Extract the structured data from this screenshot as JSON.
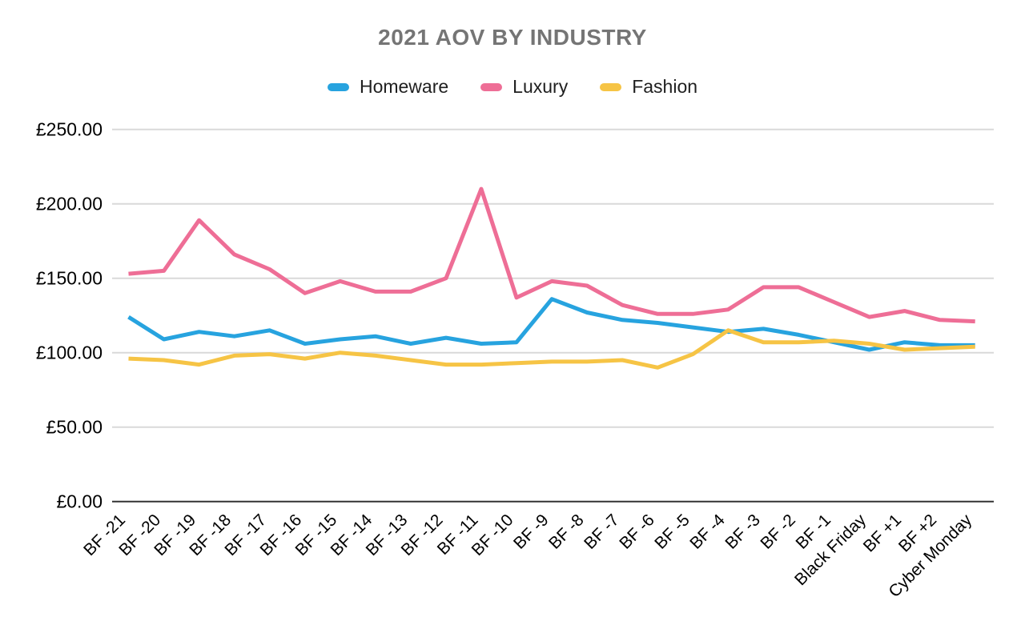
{
  "chart_data": {
    "type": "line",
    "title": "2021 AOV BY INDUSTRY",
    "title_color": "#757575",
    "legend_position": "top",
    "grid": true,
    "currency": "£",
    "ylim": [
      0,
      250
    ],
    "axis_color": "#333333",
    "gridline_color": "#d9d9d9",
    "label_color": "#000000",
    "y_ticks": [
      {
        "value": 0,
        "label": "£0.00"
      },
      {
        "value": 50,
        "label": "£50.00"
      },
      {
        "value": 100,
        "label": "£100.00"
      },
      {
        "value": 150,
        "label": "£150.00"
      },
      {
        "value": 200,
        "label": "£200.00"
      },
      {
        "value": 250,
        "label": "£250.00"
      }
    ],
    "categories": [
      "BF -21",
      "BF -20",
      "BF -19",
      "BF -18",
      "BF -17",
      "BF -16",
      "BF -15",
      "BF -14",
      "BF -13",
      "BF -12",
      "BF -11",
      "BF -10",
      "BF -9",
      "BF -8",
      "BF -7",
      "BF -6",
      "BF -5",
      "BF -4",
      "BF -3",
      "BF -2",
      "BF -1",
      "Black Friday",
      "BF +1",
      "BF +2",
      "Cyber Monday"
    ],
    "series": [
      {
        "name": "Homeware",
        "color": "#27A3DF",
        "values": [
          124,
          109,
          114,
          111,
          115,
          106,
          109,
          111,
          106,
          110,
          106,
          107,
          136,
          127,
          122,
          120,
          117,
          114,
          116,
          112,
          107,
          102,
          107,
          105,
          105
        ]
      },
      {
        "name": "Luxury",
        "color": "#EE6E96",
        "values": [
          153,
          155,
          189,
          166,
          156,
          140,
          148,
          141,
          141,
          150,
          210,
          137,
          148,
          145,
          132,
          126,
          126,
          129,
          144,
          144,
          134,
          124,
          128,
          122,
          121
        ]
      },
      {
        "name": "Fashion",
        "color": "#F6C445",
        "values": [
          96,
          95,
          92,
          98,
          99,
          96,
          100,
          98,
          95,
          92,
          92,
          93,
          94,
          94,
          95,
          90,
          99,
          115,
          107,
          107,
          108,
          106,
          102,
          103,
          104
        ]
      }
    ]
  }
}
